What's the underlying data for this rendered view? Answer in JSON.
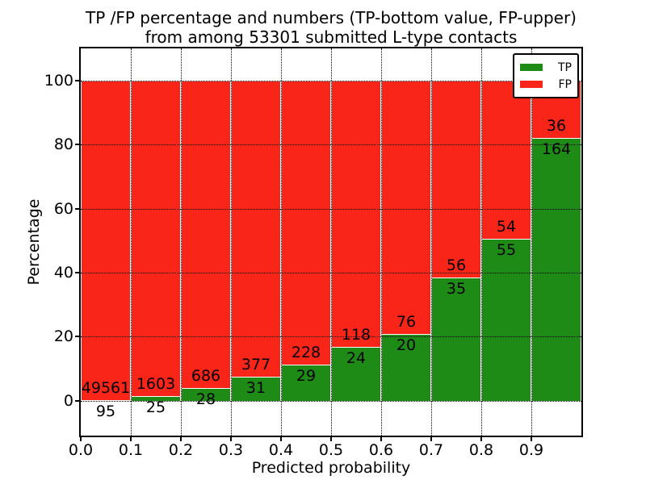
{
  "title": {
    "line1": "TP /FP percentage and numbers (TP-bottom value, FP-upper)",
    "line2": "from among 53301 submitted L-type contacts"
  },
  "axes": {
    "xlabel": "Predicted probability",
    "ylabel": "Percentage",
    "x_ticks": [
      "0.0",
      "0.1",
      "0.2",
      "0.3",
      "0.4",
      "0.5",
      "0.6",
      "0.7",
      "0.8",
      "0.9"
    ],
    "y_ticks": [
      "0",
      "20",
      "40",
      "60",
      "80",
      "100"
    ]
  },
  "legend": {
    "items": [
      {
        "label": "TP",
        "color": "#1f8b17"
      },
      {
        "label": "FP",
        "color": "#f92519"
      }
    ]
  },
  "colors": {
    "tp": "#1f8b17",
    "fp": "#f92519",
    "bar_edge": "#ffffff",
    "grid": "#000000"
  },
  "chart_data": {
    "type": "bar",
    "stacked": true,
    "normalized_to_percent": true,
    "title": "TP /FP percentage and numbers (TP-bottom value, FP-upper) from among 53301 submitted L-type contacts",
    "xlabel": "Predicted probability",
    "ylabel": "Percentage",
    "total_contacts": 53301,
    "bin_edges": [
      0.0,
      0.1,
      0.2,
      0.3,
      0.4,
      0.5,
      0.6,
      0.7,
      0.8,
      0.9,
      1.0
    ],
    "x_tick_labels": [
      "0.0",
      "0.1",
      "0.2",
      "0.3",
      "0.4",
      "0.5",
      "0.6",
      "0.7",
      "0.8",
      "0.9"
    ],
    "y_tick_values": [
      0,
      20,
      40,
      60,
      80,
      100
    ],
    "ylim": [
      -10.9,
      110.0
    ],
    "grid": "dotted",
    "legend_position": "upper right",
    "series": [
      {
        "name": "TP",
        "color": "#1f8b17",
        "counts": [
          95,
          25,
          28,
          31,
          29,
          24,
          20,
          35,
          55,
          164
        ]
      },
      {
        "name": "FP",
        "color": "#f92519",
        "counts": [
          49561,
          1603,
          686,
          377,
          228,
          118,
          76,
          56,
          54,
          36
        ]
      }
    ]
  }
}
